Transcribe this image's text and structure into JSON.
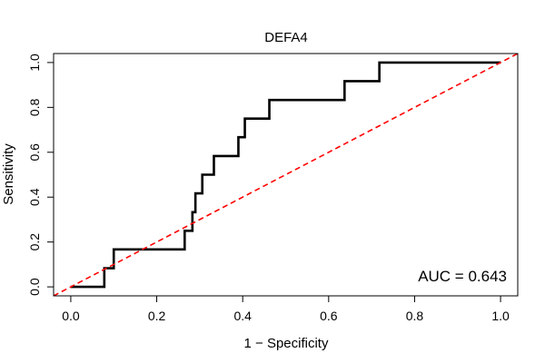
{
  "chart_data": {
    "type": "line",
    "title": "DEFA4",
    "xlabel": "1 − Specificity",
    "ylabel": "Sensitivity",
    "xlim": [
      -0.04,
      1.04
    ],
    "ylim": [
      -0.04,
      1.04
    ],
    "x_ticks": [
      0.0,
      0.2,
      0.4,
      0.6,
      0.8,
      1.0
    ],
    "x_tick_labels": [
      "0.0",
      "0.2",
      "0.4",
      "0.6",
      "0.8",
      "1.0"
    ],
    "y_ticks": [
      0.0,
      0.2,
      0.4,
      0.6,
      0.8,
      1.0
    ],
    "y_tick_labels": [
      "0.0",
      "0.2",
      "0.4",
      "0.6",
      "0.8",
      "1.0"
    ],
    "annotation": "AUC = 0.643",
    "grid": false,
    "series": [
      {
        "color": "#000000",
        "style": "solid",
        "x": [
          0.0,
          0.078,
          0.078,
          0.1,
          0.1,
          0.265,
          0.265,
          0.283,
          0.283,
          0.29,
          0.29,
          0.306,
          0.306,
          0.333,
          0.333,
          0.39,
          0.39,
          0.405,
          0.405,
          0.462,
          0.462,
          0.637,
          0.637,
          0.718,
          0.718,
          1.0
        ],
        "y": [
          0.0,
          0.0,
          0.083,
          0.083,
          0.167,
          0.167,
          0.25,
          0.25,
          0.333,
          0.333,
          0.417,
          0.417,
          0.5,
          0.5,
          0.583,
          0.583,
          0.667,
          0.667,
          0.75,
          0.75,
          0.833,
          0.833,
          0.917,
          0.917,
          1.0,
          1.0
        ]
      },
      {
        "color": "#ff0000",
        "style": "dashed",
        "x": [
          -0.04,
          1.04
        ],
        "y": [
          -0.04,
          1.04
        ]
      }
    ]
  }
}
